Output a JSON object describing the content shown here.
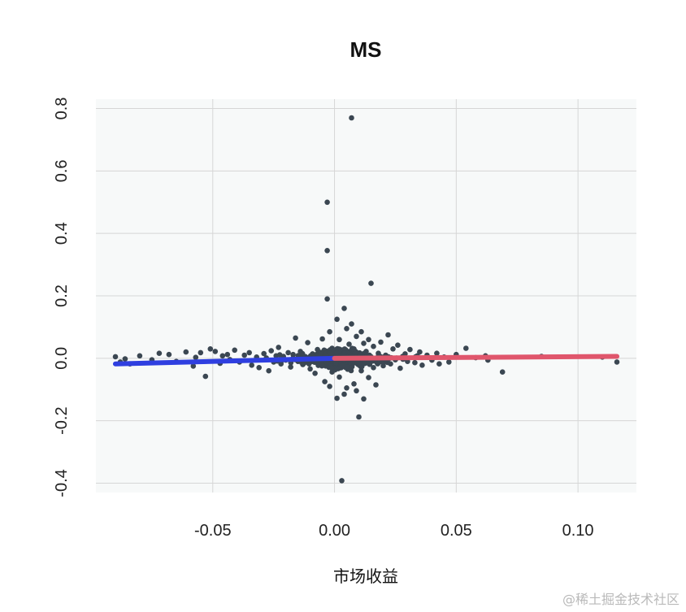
{
  "chart_data": {
    "type": "scatter",
    "title": "MS",
    "xlabel": "市场收益",
    "ylabel": "",
    "xlim": [
      -0.098,
      0.124
    ],
    "ylim": [
      -0.43,
      0.83
    ],
    "x_ticks": [
      -0.05,
      0.0,
      0.05,
      0.1
    ],
    "x_tick_labels": [
      "-0.05",
      "0.00",
      "0.05",
      "0.10"
    ],
    "y_ticks": [
      -0.4,
      -0.2,
      0.0,
      0.2,
      0.4,
      0.6,
      0.8
    ],
    "y_tick_labels": [
      "-0.4",
      "-0.2",
      "0.0",
      "0.2",
      "0.4",
      "0.6",
      "0.8"
    ],
    "grid": true,
    "background_color": "#f7f9f9",
    "point_color": "#3b4752",
    "points": [
      [
        -0.09,
        0.005
      ],
      [
        -0.088,
        -0.012
      ],
      [
        -0.086,
        -0.002
      ],
      [
        -0.084,
        -0.018
      ],
      [
        -0.08,
        0.008
      ],
      [
        -0.075,
        -0.005
      ],
      [
        -0.072,
        0.016
      ],
      [
        -0.068,
        0.012
      ],
      [
        -0.065,
        -0.01
      ],
      [
        -0.061,
        0.02
      ],
      [
        -0.058,
        -0.025
      ],
      [
        -0.057,
        0.003
      ],
      [
        -0.055,
        0.018
      ],
      [
        -0.053,
        -0.058
      ],
      [
        -0.051,
        0.03
      ],
      [
        -0.049,
        0.022
      ],
      [
        -0.047,
        -0.016
      ],
      [
        -0.046,
        0.008
      ],
      [
        -0.044,
        0.012
      ],
      [
        -0.043,
        -0.004
      ],
      [
        -0.041,
        0.026
      ],
      [
        -0.039,
        -0.012
      ],
      [
        -0.037,
        0.01
      ],
      [
        -0.035,
        0.018
      ],
      [
        -0.034,
        -0.022
      ],
      [
        -0.032,
        0.004
      ],
      [
        -0.031,
        -0.03
      ],
      [
        -0.029,
        0.015
      ],
      [
        -0.028,
        0.001
      ],
      [
        -0.027,
        -0.04
      ],
      [
        -0.026,
        0.024
      ],
      [
        -0.025,
        -0.012
      ],
      [
        -0.024,
        0.008
      ],
      [
        -0.023,
        0.035
      ],
      [
        -0.022,
        -0.018
      ],
      [
        -0.021,
        0.006
      ],
      [
        -0.02,
        -0.006
      ],
      [
        -0.019,
        0.018
      ],
      [
        -0.018,
        -0.028
      ],
      [
        -0.017,
        0.012
      ],
      [
        -0.016,
        0.065
      ],
      [
        -0.015,
        -0.01
      ],
      [
        -0.014,
        0.022
      ],
      [
        -0.013,
        -0.02
      ],
      [
        -0.012,
        0.004
      ],
      [
        -0.011,
        0.05
      ],
      [
        -0.01,
        -0.034
      ],
      [
        -0.009,
        0.014
      ],
      [
        -0.008,
        -0.048
      ],
      [
        -0.007,
        0.028
      ],
      [
        -0.006,
        -0.012
      ],
      [
        -0.005,
        0.062
      ],
      [
        -0.004,
        -0.075
      ],
      [
        -0.003,
        0.5
      ],
      [
        -0.003,
        0.345
      ],
      [
        -0.002,
        0.085
      ],
      [
        -0.002,
        -0.09
      ],
      [
        -0.001,
        0.032
      ],
      [
        -0.001,
        -0.044
      ],
      [
        0.0,
        0.01
      ],
      [
        -0.003,
        0.19
      ],
      [
        0.001,
        0.125
      ],
      [
        0.001,
        -0.128
      ],
      [
        0.002,
        0.06
      ],
      [
        0.002,
        -0.06
      ],
      [
        0.003,
        0.018
      ],
      [
        0.003,
        -0.392
      ],
      [
        0.004,
        0.16
      ],
      [
        0.004,
        -0.115
      ],
      [
        0.005,
        0.095
      ],
      [
        0.005,
        -0.095
      ],
      [
        0.006,
        0.045
      ],
      [
        0.006,
        -0.025
      ],
      [
        0.007,
        0.77
      ],
      [
        0.007,
        0.11
      ],
      [
        0.008,
        -0.082
      ],
      [
        0.008,
        0.03
      ],
      [
        0.009,
        -0.104
      ],
      [
        0.009,
        0.07
      ],
      [
        0.01,
        -0.188
      ],
      [
        0.01,
        0.012
      ],
      [
        0.011,
        0.085
      ],
      [
        0.011,
        -0.04
      ],
      [
        0.012,
        0.048
      ],
      [
        0.012,
        -0.13
      ],
      [
        0.013,
        -0.015
      ],
      [
        0.013,
        0.022
      ],
      [
        0.014,
        0.06
      ],
      [
        0.014,
        -0.062
      ],
      [
        0.015,
        0.24
      ],
      [
        0.015,
        0.005
      ],
      [
        0.016,
        -0.03
      ],
      [
        0.016,
        0.038
      ],
      [
        0.017,
        -0.085
      ],
      [
        0.018,
        0.016
      ],
      [
        0.019,
        -0.01
      ],
      [
        0.019,
        0.052
      ],
      [
        0.02,
        -0.024
      ],
      [
        0.021,
        0.01
      ],
      [
        0.022,
        0.075
      ],
      [
        0.023,
        -0.018
      ],
      [
        0.024,
        0.03
      ],
      [
        0.025,
        -0.005
      ],
      [
        0.026,
        0.042
      ],
      [
        0.027,
        -0.032
      ],
      [
        0.028,
        0.006
      ],
      [
        0.029,
        0.014
      ],
      [
        0.03,
        -0.01
      ],
      [
        0.031,
        0.028
      ],
      [
        0.033,
        -0.014
      ],
      [
        0.034,
        0.008
      ],
      [
        0.035,
        0.02
      ],
      [
        0.036,
        -0.022
      ],
      [
        0.038,
        0.01
      ],
      [
        0.04,
        -0.006
      ],
      [
        0.042,
        0.016
      ],
      [
        0.043,
        -0.018
      ],
      [
        0.045,
        0.004
      ],
      [
        0.047,
        -0.012
      ],
      [
        0.05,
        0.012
      ],
      [
        0.054,
        0.032
      ],
      [
        0.058,
        0.002
      ],
      [
        0.062,
        0.008
      ],
      [
        0.063,
        -0.006
      ],
      [
        0.069,
        -0.044
      ],
      [
        0.085,
        0.006
      ],
      [
        0.11,
        0.004
      ],
      [
        0.116,
        -0.012
      ]
    ],
    "series": [
      {
        "type": "fit-line",
        "color": "#2f3fe0",
        "x": [
          -0.09,
          0.0
        ],
        "y": [
          -0.018,
          0.0
        ]
      },
      {
        "type": "fit-line",
        "color": "#e0566c",
        "x": [
          0.0,
          0.116
        ],
        "y": [
          0.0,
          0.006
        ]
      }
    ]
  },
  "watermark": "@稀土掘金技术社区"
}
